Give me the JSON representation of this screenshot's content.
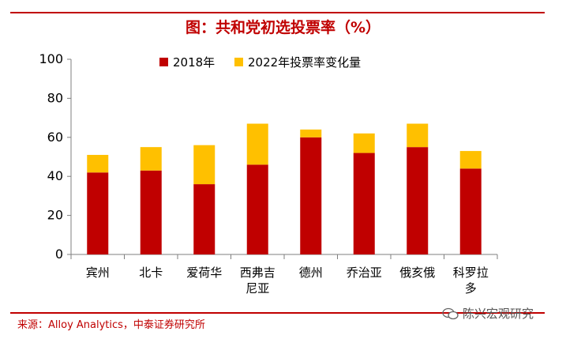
{
  "title": "图：共和党初选投票率（%）",
  "source": "来源：Alloy Analytics，中泰证券研究所",
  "watermark": "陈兴宏观研究",
  "watermark_icon": "wechat-icon",
  "colors": {
    "base": "#c00000",
    "change": "#ffc000",
    "accent": "#c00000"
  },
  "chart_data": {
    "type": "bar",
    "stacked": true,
    "categories": [
      [
        "宾州"
      ],
      [
        "北卡"
      ],
      [
        "爱荷华"
      ],
      [
        "西弗吉",
        "尼亚"
      ],
      [
        "德州"
      ],
      [
        "乔治亚"
      ],
      [
        "俄亥俄"
      ],
      [
        "科罗拉",
        "多"
      ]
    ],
    "series": [
      {
        "name": "2018年",
        "values": [
          42,
          43,
          36,
          46,
          60,
          52,
          55,
          44
        ]
      },
      {
        "name": "2022年投票率变化量",
        "values": [
          9,
          12,
          20,
          21,
          4,
          10,
          12,
          9
        ]
      }
    ],
    "ylim": [
      0,
      100
    ],
    "yticks": [
      0,
      20,
      40,
      60,
      80,
      100
    ],
    "legend_position": "top",
    "grid": false
  }
}
